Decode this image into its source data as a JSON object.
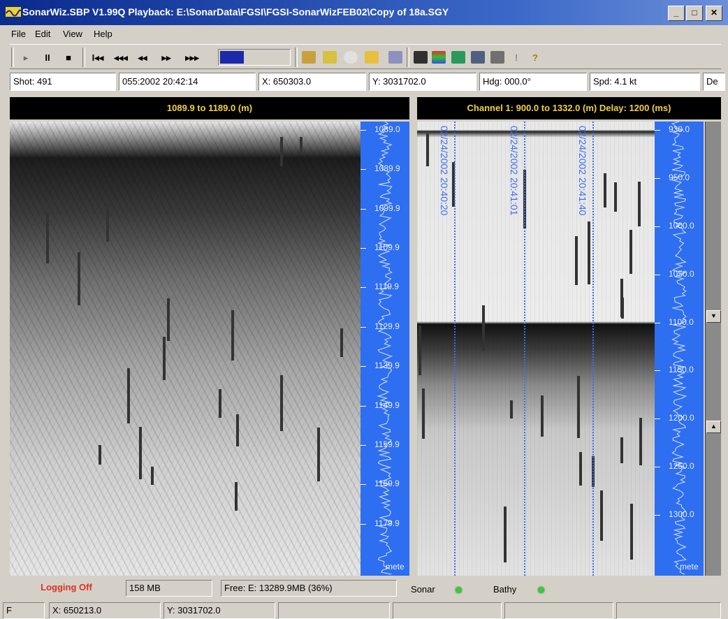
{
  "window": {
    "title": "SonarWiz.SBP V1.99Q Playback: E:\\SonarData\\FGSI\\FGSI-SonarWizFEB02\\Copy of 18a.SGY",
    "minimize": "_",
    "maximize": "□",
    "close": "✕"
  },
  "menu": [
    "File",
    "Edit",
    "View",
    "Help"
  ],
  "toolbar": {
    "play": "▸",
    "pause": "II",
    "stop": "■",
    "first": "I◂◂",
    "fast_rewind": "◂◂◂",
    "rewind": "◂◂",
    "forward": "▸▸",
    "fast_forward": "▸▸▸",
    "progress": 0.35,
    "help": "?",
    "alert": "!"
  },
  "info": {
    "shot": "Shot: 491",
    "datetime": "055:2002 20:42:14",
    "x": "X: 650303.0",
    "y": "Y: 3031702.0",
    "hdg": "Hdg: 000.0°",
    "spd": "Spd: 4.1 kt",
    "extra": "De"
  },
  "left_panel": {
    "header": "1089.9 to 1189.0 (m)",
    "ruler_labels": [
      "1089.0",
      "1089.9",
      "1099.9",
      "1109.9",
      "1119.9",
      "1129.9",
      "1139.9",
      "1149.9",
      "1159.9",
      "1169.9",
      "1179.9"
    ],
    "unit": "mete"
  },
  "right_panel": {
    "header": "Channel 1: 900.0 to 1332.0 (m) Delay: 1200 (ms)",
    "ruler_labels": [
      "930.0",
      "950.0",
      "1000.0",
      "1050.0",
      "1100.0",
      "1150.0",
      "1200.0",
      "1250.0",
      "1300.0"
    ],
    "unit": "mete",
    "time_marks": [
      "02/24/2002 20:40:20",
      "02/24/2002 20:41:01",
      "02/24/2002 20:41:40"
    ]
  },
  "status": {
    "logging": "Logging Off",
    "memory": "158 MB",
    "free": "Free: E: 13289.9MB (36%)",
    "sonar": "Sonar",
    "bathy": "Bathy"
  },
  "bottom": {
    "left": "F",
    "x": "X: 650213.0",
    "y": "Y: 3031702.0"
  },
  "colors": {
    "title_bg": "#0a2a8c",
    "panel_header_text": "#f2d040",
    "ruler_bg": "#2e6ef0",
    "logging_text": "#e03020",
    "led": "#3cc83c"
  }
}
